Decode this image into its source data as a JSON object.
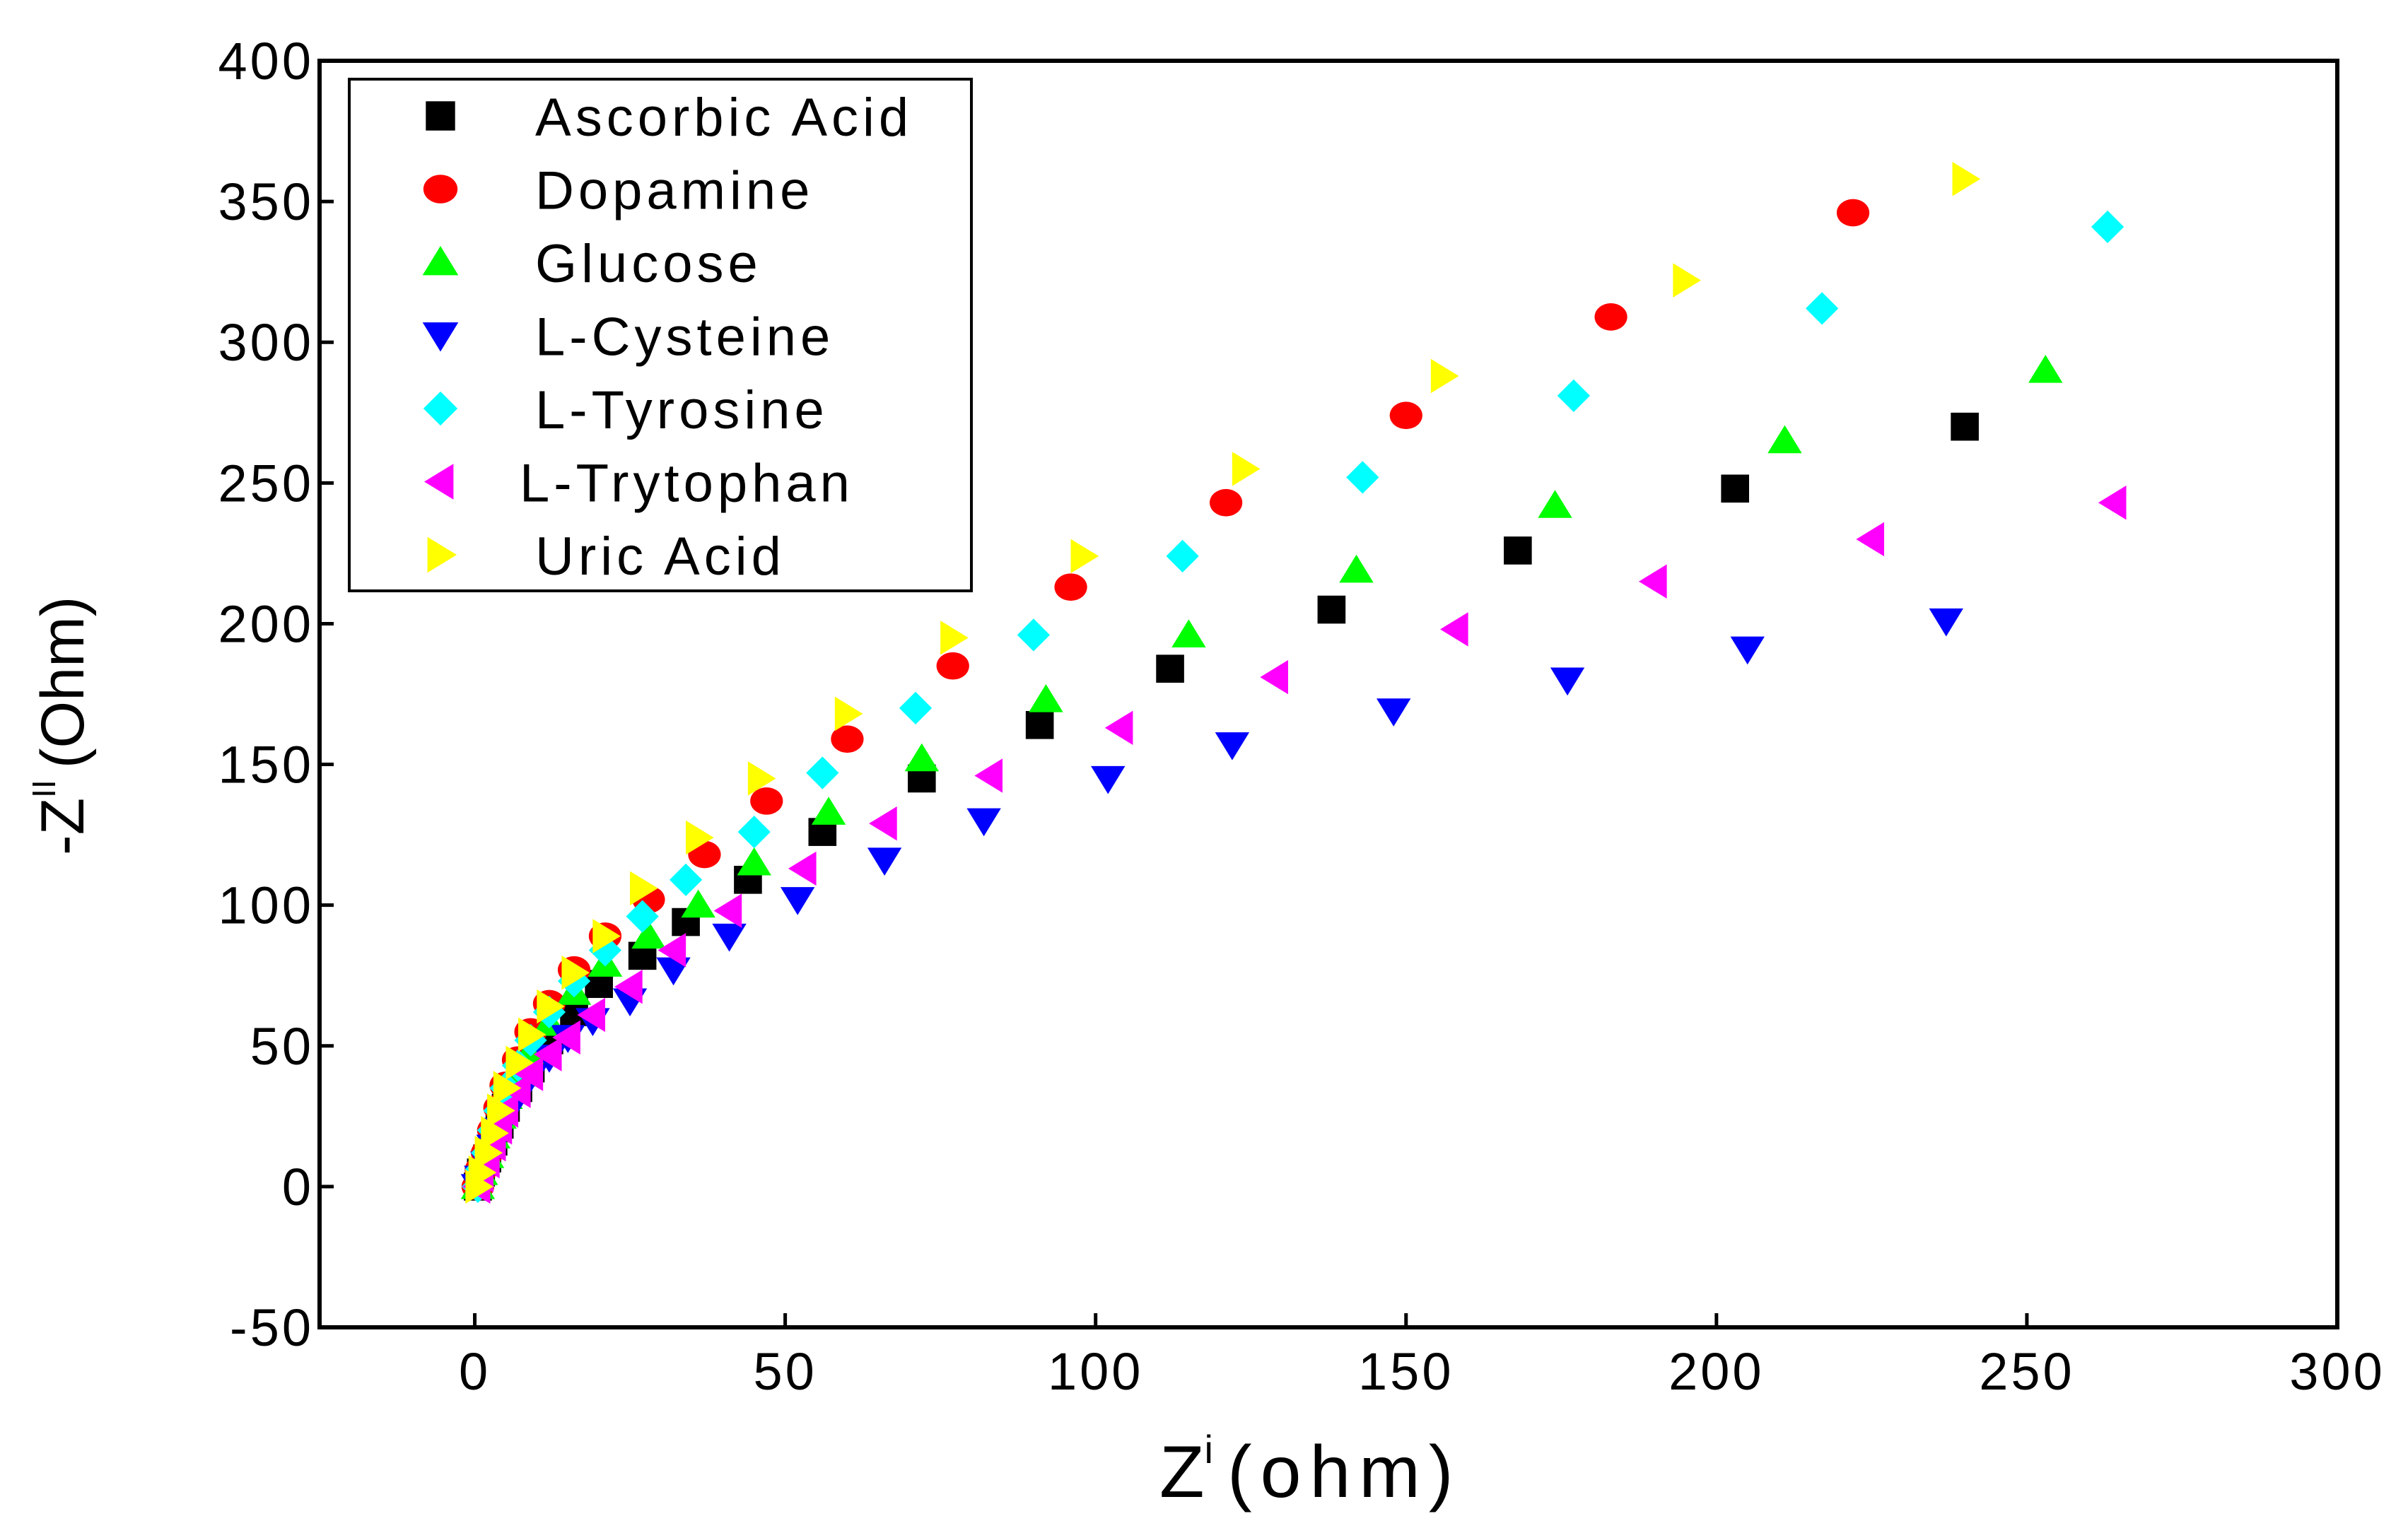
{
  "chart_data": {
    "type": "scatter",
    "title": "",
    "xlabel": "Z",
    "xlabel_sup": "i",
    "xlabel_unit": "(ohm)",
    "ylabel": "-Z",
    "ylabel_sup": "II",
    "ylabel_unit": "(Ohm)",
    "xlim": [
      -25,
      300
    ],
    "ylim": [
      -50,
      400
    ],
    "xticks": [
      0,
      50,
      100,
      150,
      200,
      250,
      300
    ],
    "yticks": [
      -50,
      0,
      50,
      100,
      150,
      200,
      250,
      300,
      350,
      400
    ],
    "xtick_labels": [
      "0",
      "50",
      "100",
      "150",
      "200",
      "250",
      "300"
    ],
    "ytick_labels": [
      "-50",
      "0",
      "50",
      "100",
      "150",
      "200",
      "250",
      "300",
      "350",
      "400"
    ],
    "legend_position": "top-left",
    "series": [
      {
        "name": "Ascorbic Acid",
        "marker": "square",
        "color": "#000000",
        "x": [
          0.5,
          1,
          2,
          3,
          4,
          5,
          7,
          9,
          12,
          16,
          20,
          27,
          34,
          44,
          56,
          72,
          91,
          112,
          138,
          168,
          203,
          240
        ],
        "y": [
          0,
          5,
          10,
          16,
          22,
          28,
          35,
          42,
          52,
          62,
          72,
          82,
          94,
          109,
          126,
          145,
          164,
          184,
          205,
          226,
          248,
          270
        ]
      },
      {
        "name": "Dopamine",
        "marker": "circle",
        "color": "#ff0000",
        "x": [
          0.5,
          1,
          2,
          3,
          4,
          5,
          7,
          9,
          12,
          16,
          21,
          28,
          37,
          47,
          60,
          77,
          96,
          121,
          150,
          183,
          222
        ],
        "y": [
          0,
          6,
          12,
          20,
          28,
          36,
          45,
          55,
          65,
          77,
          89,
          102,
          118,
          137,
          159,
          185,
          213,
          243,
          274,
          309,
          346
        ]
      },
      {
        "name": "Glucose",
        "marker": "triangle-up",
        "color": "#00ff00",
        "x": [
          0.5,
          1,
          2,
          3,
          4,
          5,
          7,
          9,
          12,
          16,
          21,
          28,
          36,
          45,
          57,
          72,
          92,
          115,
          142,
          174,
          211,
          253
        ],
        "y": [
          0,
          5,
          11,
          18,
          25,
          32,
          40,
          48,
          58,
          69,
          79,
          89,
          100,
          115,
          133,
          152,
          173,
          196,
          219,
          242,
          265,
          290
        ]
      },
      {
        "name": "L-Cysteine",
        "marker": "triangle-down",
        "color": "#0000ff",
        "x": [
          0.5,
          1,
          2,
          3,
          4,
          5,
          7,
          9,
          12,
          15,
          19,
          25,
          32,
          41,
          52,
          66,
          82,
          102,
          122,
          148,
          176,
          205,
          237
        ],
        "y": [
          0,
          3,
          8,
          14,
          20,
          26,
          32,
          39,
          46,
          53,
          59,
          66,
          77,
          89,
          102,
          116,
          130,
          145,
          157,
          169,
          180,
          191,
          201
        ]
      },
      {
        "name": "L-Tyrosine",
        "marker": "diamond",
        "color": "#00ffff",
        "x": [
          0.5,
          1,
          2,
          3,
          4,
          5,
          7,
          9,
          12,
          16,
          21,
          27,
          34,
          45,
          56,
          71,
          90,
          114,
          143,
          177,
          217,
          263
        ],
        "y": [
          0,
          6,
          12,
          20,
          27,
          35,
          43,
          52,
          62,
          73,
          84,
          96,
          109,
          126,
          147,
          170,
          196,
          224,
          252,
          281,
          312,
          341
        ]
      },
      {
        "name": "L-Trytophan",
        "marker": "triangle-left",
        "color": "#ff00ff",
        "x": [
          0.5,
          1,
          2,
          3,
          4,
          5,
          7,
          9,
          12,
          15,
          19,
          25,
          32,
          41,
          53,
          66,
          83,
          104,
          129,
          158,
          190,
          225,
          264
        ],
        "y": [
          0,
          4,
          9,
          15,
          21,
          27,
          34,
          40,
          47,
          53,
          61,
          71,
          84,
          98,
          113,
          129,
          146,
          163,
          181,
          198,
          215,
          230,
          243
        ]
      },
      {
        "name": "Uric Acid",
        "marker": "triangle-right",
        "color": "#ffff00",
        "x": [
          0.5,
          1,
          2,
          3,
          4,
          5,
          7,
          9,
          12,
          16,
          21,
          27,
          36,
          46,
          60,
          77,
          98,
          124,
          156,
          195,
          240
        ],
        "y": [
          0,
          5,
          12,
          19,
          27,
          35,
          44,
          54,
          64,
          76,
          89,
          106,
          124,
          145,
          168,
          195,
          224,
          255,
          288,
          322,
          358
        ]
      }
    ]
  }
}
